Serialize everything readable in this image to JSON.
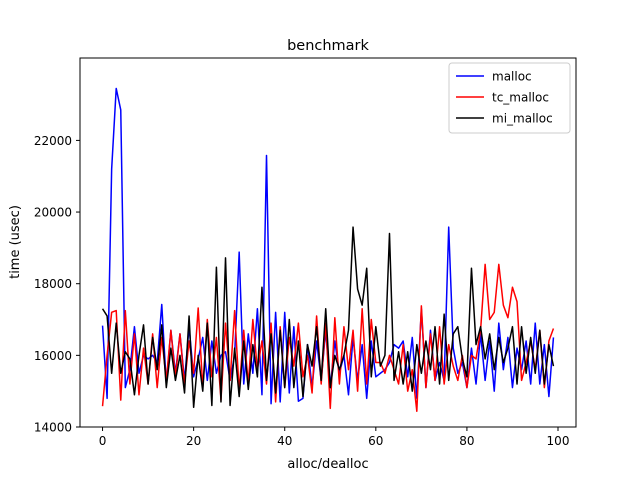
{
  "chart_data": {
    "type": "line",
    "title": "benchmark",
    "xlabel": "alloc/dealloc",
    "ylabel": "time (usec)",
    "xlim": [
      -4.95,
      103.95
    ],
    "ylim": [
      14000,
      24300
    ],
    "xticks": [
      0,
      20,
      40,
      60,
      80,
      100
    ],
    "yticks": [
      14000,
      16000,
      18000,
      20000,
      22000
    ],
    "legend_position": "top-right",
    "grid": false,
    "x": [
      0,
      1,
      2,
      3,
      4,
      5,
      6,
      7,
      8,
      9,
      10,
      11,
      12,
      13,
      14,
      15,
      16,
      17,
      18,
      19,
      20,
      21,
      22,
      23,
      24,
      25,
      26,
      27,
      28,
      29,
      30,
      31,
      32,
      33,
      34,
      35,
      36,
      37,
      38,
      39,
      40,
      41,
      42,
      43,
      44,
      45,
      46,
      47,
      48,
      49,
      50,
      51,
      52,
      53,
      54,
      55,
      56,
      57,
      58,
      59,
      60,
      61,
      62,
      63,
      64,
      65,
      66,
      67,
      68,
      69,
      70,
      71,
      72,
      73,
      74,
      75,
      76,
      77,
      78,
      79,
      80,
      81,
      82,
      83,
      84,
      85,
      86,
      87,
      88,
      89,
      90,
      91,
      92,
      93,
      94,
      95,
      96,
      97,
      98,
      99
    ],
    "series": [
      {
        "name": "malloc",
        "color": "#0000ff",
        "values": [
          16830,
          14800,
          21200,
          23450,
          22850,
          15100,
          15600,
          16800,
          15500,
          16000,
          15900,
          16000,
          15800,
          17420,
          15200,
          16700,
          15500,
          16600,
          15300,
          16800,
          15400,
          15900,
          16500,
          15300,
          16400,
          15500,
          16000,
          16100,
          15300,
          16000,
          18880,
          15200,
          16600,
          15500,
          17300,
          14900,
          21580,
          14650,
          17200,
          14700,
          17200,
          14950,
          16800,
          14720,
          14800,
          16300,
          15100,
          16400,
          15300,
          16700,
          15100,
          16400,
          15500,
          16000,
          14900,
          16500,
          15300,
          16300,
          14800,
          16400,
          15400,
          15500,
          15600,
          15800,
          16300,
          16200,
          16400,
          15400,
          16500,
          14800,
          17300,
          15100,
          16700,
          15300,
          15800,
          15300,
          19580,
          16200,
          15500,
          15800,
          15100,
          16200,
          15200,
          16600,
          15300,
          16400,
          15000,
          16900,
          15600,
          16500,
          15100,
          16200,
          15600,
          16400,
          15200,
          16900,
          15200,
          16300,
          14850,
          16500
        ]
      },
      {
        "name": "tc_malloc",
        "color": "#ff0000",
        "values": [
          14580,
          16000,
          17200,
          17250,
          14750,
          17250,
          15200,
          16600,
          14900,
          16200,
          15200,
          16600,
          15100,
          16500,
          15300,
          16700,
          15400,
          16600,
          15200,
          16400,
          15500,
          17320,
          15100,
          17000,
          15400,
          16500,
          14750,
          16900,
          15300,
          17250,
          15000,
          16700,
          15200,
          17000,
          15600,
          16400,
          15200,
          16900,
          14700,
          16800,
          15100,
          16500,
          15700,
          16900,
          15400,
          16000,
          14950,
          17100,
          15200,
          16900,
          14520,
          17050,
          15200,
          16800,
          15600,
          16700,
          15000,
          17300,
          15200,
          17000,
          15800,
          15800,
          15500,
          16000,
          15600,
          15200,
          16300,
          15000,
          15600,
          14440,
          17380,
          15100,
          16600,
          15300,
          16800,
          15200,
          16300,
          15700,
          15300,
          16000,
          15100,
          16000,
          15900,
          16700,
          18540,
          17000,
          17200,
          18540,
          17400,
          17050,
          17900,
          17500,
          15300,
          15800,
          16400,
          15600,
          16700,
          15100,
          16400,
          16750
        ]
      },
      {
        "name": "mi_malloc",
        "color": "#000000",
        "values": [
          17300,
          17100,
          15500,
          16900,
          15500,
          16100,
          15900,
          14900,
          16000,
          16850,
          15200,
          16500,
          15600,
          16850,
          15100,
          16200,
          15300,
          16000,
          14950,
          17100,
          14550,
          16000,
          15000,
          16900,
          14600,
          18460,
          14700,
          18720,
          14600,
          16200,
          14850,
          16400,
          15050,
          16300,
          15400,
          17900,
          15300,
          16600,
          14950,
          16700,
          15100,
          17000,
          15100,
          16400,
          14850,
          16300,
          15700,
          16800,
          15300,
          17300,
          15100,
          16000,
          15600,
          16000,
          16700,
          19580,
          17850,
          17400,
          18430,
          15400,
          16800,
          15700,
          16000,
          19400,
          15300,
          16100,
          15200,
          16100,
          15000,
          16300,
          15500,
          16400,
          15600,
          16800,
          15200,
          17150,
          15300,
          16600,
          16800,
          15900,
          15400,
          18430,
          16300,
          16800,
          15900,
          16600,
          15600,
          16500,
          15800,
          16200,
          16800,
          15200,
          16800,
          15500,
          16500,
          15500,
          16700,
          15200,
          16300,
          15700
        ]
      }
    ]
  }
}
